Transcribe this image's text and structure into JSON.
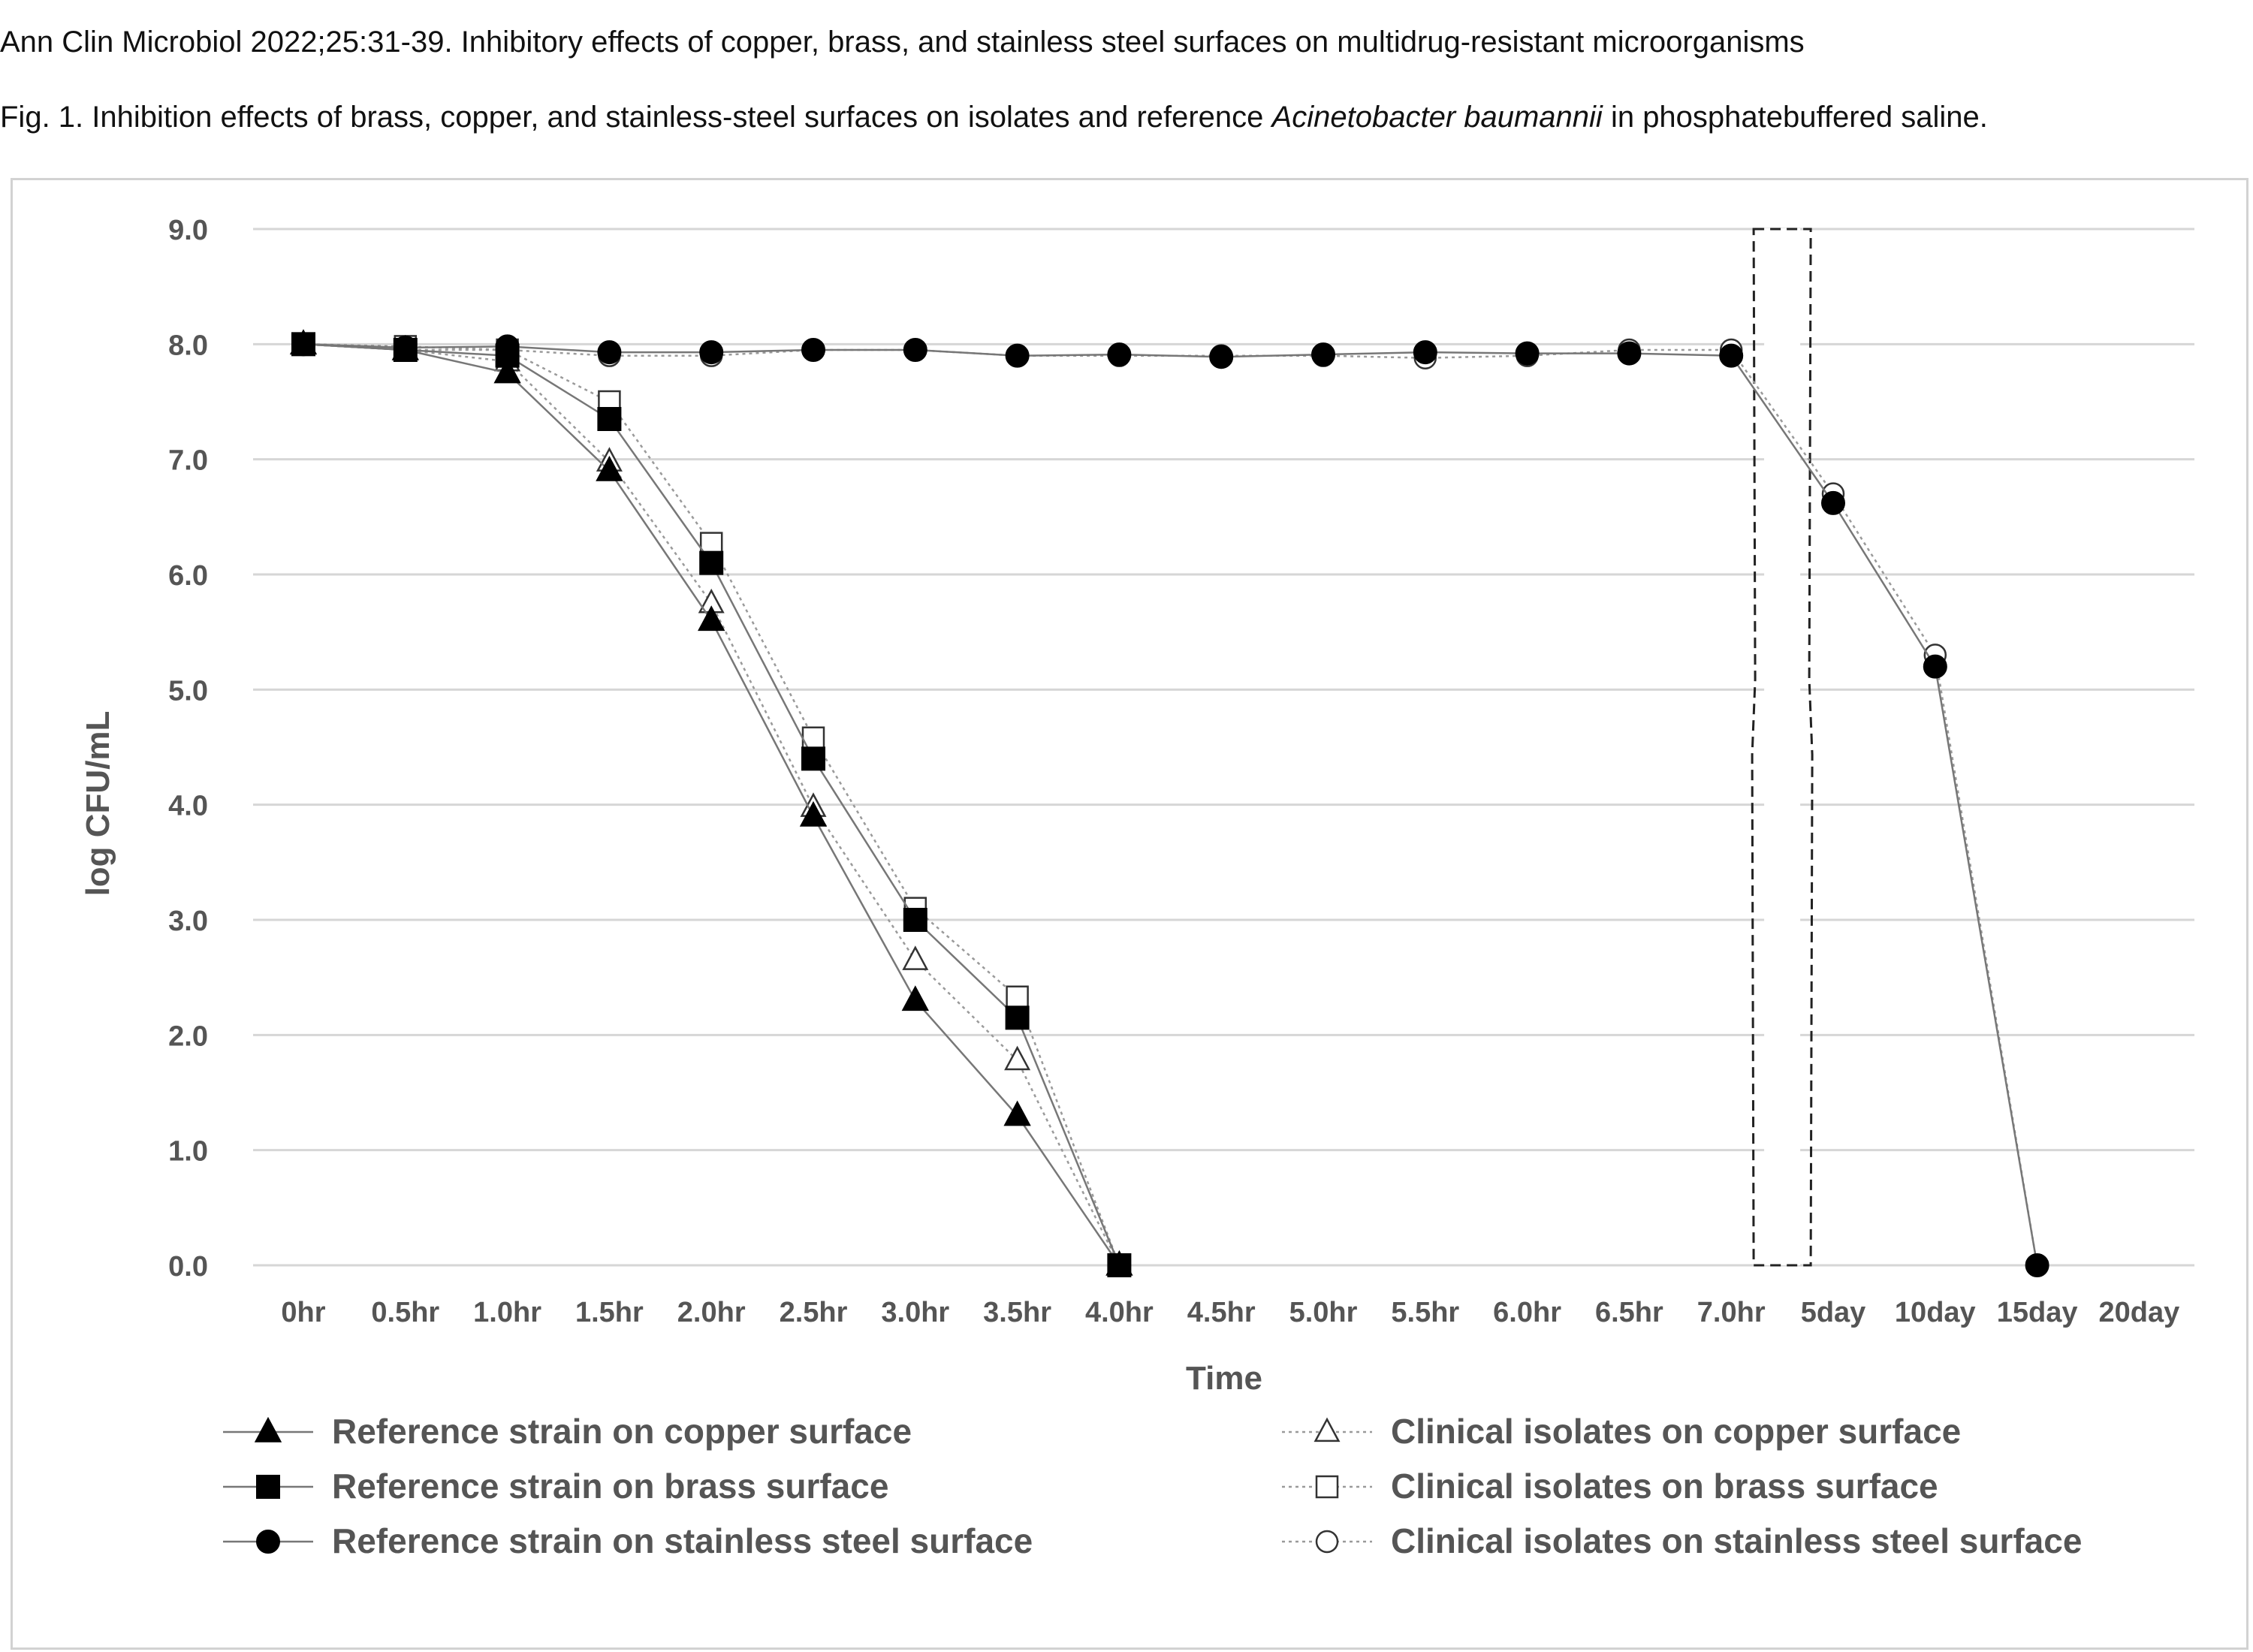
{
  "header": {
    "citation": "Ann Clin Microbiol 2022;25:31-39. Inhibitory effects of copper, brass, and stainless steel surfaces on multidrug-resistant microorganisms",
    "caption_prefix": "Fig. 1. Inhibition effects of brass, copper, and stainless-steel surfaces on isolates and reference ",
    "caption_species": "Acinetobacter baumannii",
    "caption_suffix": " in phosphatebuffered saline."
  },
  "chart_data": {
    "type": "line",
    "title": "",
    "xlabel": "Time",
    "ylabel": "log CFU/mL",
    "ylim": [
      0,
      9
    ],
    "yticks": [
      "0.0",
      "1.0",
      "2.0",
      "3.0",
      "4.0",
      "5.0",
      "6.0",
      "7.0",
      "8.0",
      "9.0"
    ],
    "categories": [
      "0hr",
      "0.5hr",
      "1.0hr",
      "1.5hr",
      "2.0hr",
      "2.5hr",
      "3.0hr",
      "3.5hr",
      "4.0hr",
      "4.5hr",
      "5.0hr",
      "5.5hr",
      "6.0hr",
      "6.5hr",
      "7.0hr",
      "5day",
      "10day",
      "15day",
      "20day"
    ],
    "grid": true,
    "axis_break": "between 7.0hr and 5day",
    "legend_position": "bottom",
    "series": [
      {
        "name": "Reference strain on copper surface",
        "marker": "triangle",
        "filled": true,
        "line": "solid",
        "values": [
          8.0,
          7.95,
          7.75,
          6.9,
          5.6,
          3.9,
          2.3,
          1.3,
          0.0,
          null,
          null,
          null,
          null,
          null,
          null,
          null,
          null,
          null,
          null
        ]
      },
      {
        "name": "Reference strain on brass surface",
        "marker": "square",
        "filled": true,
        "line": "solid",
        "values": [
          8.0,
          7.95,
          7.9,
          7.35,
          6.1,
          4.4,
          3.0,
          2.15,
          0.0,
          null,
          null,
          null,
          null,
          null,
          null,
          null,
          null,
          null,
          null
        ]
      },
      {
        "name": "Reference strain on stainless steel surface",
        "marker": "circle",
        "filled": true,
        "line": "solid",
        "values": [
          8.0,
          7.97,
          7.98,
          7.93,
          7.93,
          7.95,
          7.95,
          7.9,
          7.91,
          7.89,
          7.91,
          7.93,
          7.92,
          7.92,
          7.9,
          6.62,
          5.2,
          0.0,
          null
        ]
      },
      {
        "name": "Clinical isolates on copper surface",
        "marker": "triangle",
        "filled": false,
        "line": "dotted",
        "values": [
          8.0,
          7.95,
          7.85,
          6.98,
          5.75,
          3.98,
          2.65,
          1.78,
          0.0,
          null,
          null,
          null,
          null,
          null,
          null,
          null,
          null,
          null,
          null
        ]
      },
      {
        "name": "Clinical isolates on brass surface",
        "marker": "square",
        "filled": false,
        "line": "dotted",
        "values": [
          8.0,
          7.98,
          7.95,
          7.5,
          6.27,
          4.58,
          3.1,
          2.33,
          0.0,
          null,
          null,
          null,
          null,
          null,
          null,
          null,
          null,
          null,
          null
        ]
      },
      {
        "name": "Clinical isolates on stainless steel surface",
        "marker": "circle",
        "filled": false,
        "line": "dotted",
        "values": [
          8.0,
          7.95,
          7.95,
          7.9,
          7.9,
          7.95,
          7.95,
          7.9,
          7.9,
          7.9,
          7.9,
          7.88,
          7.9,
          7.95,
          7.95,
          6.7,
          5.3,
          0.0,
          null
        ]
      }
    ]
  }
}
